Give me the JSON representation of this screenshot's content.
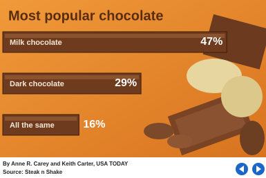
{
  "chart_data": {
    "type": "bar",
    "orientation": "horizontal",
    "title": "Most popular chocolate",
    "categories": [
      "Milk chocolate",
      "Dark chocolate",
      "All the same"
    ],
    "values": [
      47,
      29,
      16
    ],
    "value_labels": [
      "47%",
      "29%",
      "16%"
    ],
    "color": "#6e3b1e",
    "credit": "By Anne R. Carey and Keith Carter, USA TODAY",
    "source": "Source: Steak n Shake"
  }
}
